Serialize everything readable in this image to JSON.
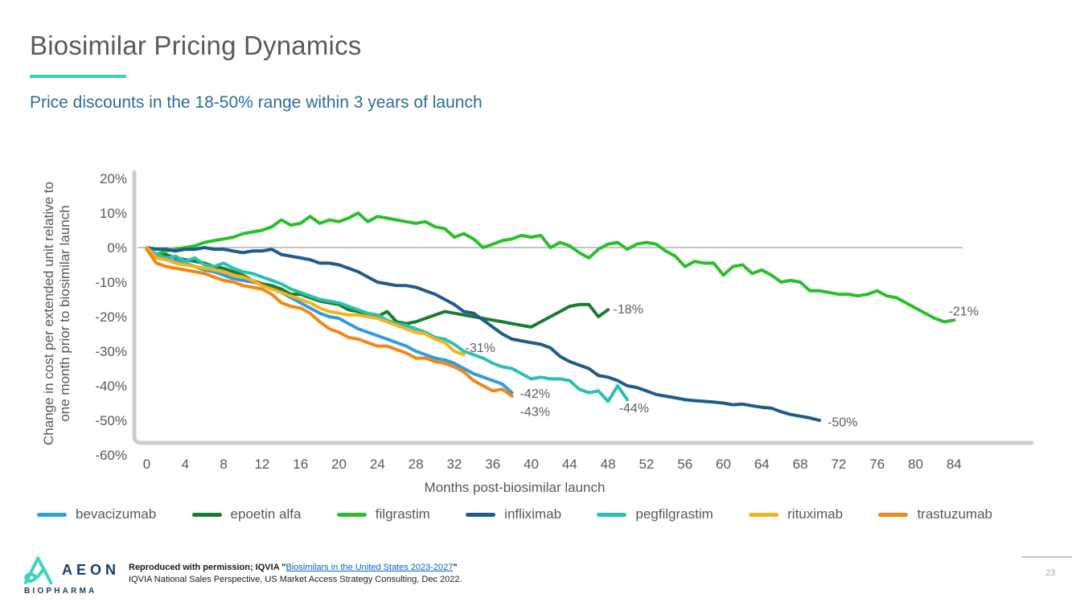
{
  "header": {
    "title": "Biosimilar Pricing Dynamics",
    "subtitle": "Price discounts in the 18-50% range within 3 years of launch",
    "accent_color": "#3ed3c0",
    "title_color": "#58595b",
    "subtitle_color": "#2e6d95"
  },
  "chart_data": {
    "type": "line",
    "x_label": "Months post-biosimilar launch",
    "y_label_line1": "Change in cost per extended unit relative to",
    "y_label_line2": "one month prior to biosimilar launch",
    "xlim": [
      0,
      84
    ],
    "ylim": [
      -60,
      20
    ],
    "x_ticks": [
      0,
      4,
      8,
      12,
      16,
      20,
      24,
      28,
      32,
      36,
      40,
      44,
      48,
      52,
      56,
      60,
      64,
      68,
      72,
      76,
      80,
      84
    ],
    "y_ticks": [
      {
        "v": 20,
        "label": "20%"
      },
      {
        "v": 10,
        "label": "10%"
      },
      {
        "v": 0,
        "label": "0%"
      },
      {
        "v": -10,
        "label": "-10%"
      },
      {
        "v": -20,
        "label": "-20%"
      },
      {
        "v": -30,
        "label": "-30%"
      },
      {
        "v": -40,
        "label": "-40%"
      },
      {
        "v": -50,
        "label": "-50%"
      },
      {
        "v": -60,
        "label": "-60%"
      }
    ],
    "grid": "zero-line-only",
    "legend_position": "bottom",
    "series": [
      {
        "name": "bevacizumab",
        "color": "#2e9fd9",
        "end_label": "-42%",
        "start_month": 0,
        "values": [
          0,
          -2,
          -3.5,
          -4,
          -4.5,
          -5.5,
          -6.5,
          -7,
          -8,
          -9,
          -9.5,
          -10,
          -10.5,
          -11.5,
          -13,
          -14.5,
          -16,
          -17.5,
          -19,
          -20,
          -20.5,
          -22,
          -23.5,
          -24.5,
          -25.5,
          -26.5,
          -27.5,
          -28.5,
          -30,
          -31,
          -32,
          -32.5,
          -33.5,
          -35,
          -36.5,
          -37.5,
          -38.5,
          -39.5,
          -42
        ]
      },
      {
        "name": "epoetin alfa",
        "color": "#1b7b33",
        "end_label": "-18%",
        "start_month": 0,
        "values": [
          0,
          -2.5,
          -2,
          -3,
          -3.5,
          -4,
          -4.5,
          -5.5,
          -6,
          -7,
          -8,
          -9.5,
          -10.5,
          -11,
          -12,
          -13.5,
          -13.5,
          -14.5,
          -15.5,
          -16,
          -16.5,
          -18,
          -18.5,
          -19.5,
          -20,
          -18.5,
          -21.5,
          -22,
          -21.5,
          -20.5,
          -19.5,
          -18.5,
          -19,
          -19.5,
          -20,
          -20.5,
          -21,
          -21.5,
          -22,
          -22.5,
          -23,
          -21.5,
          -20,
          -18.5,
          -17,
          -16.5,
          -16.5,
          -20,
          -18
        ]
      },
      {
        "name": "filgrastim",
        "color": "#2cbe2c",
        "end_label": "-21%",
        "start_month": 0,
        "values": [
          -0.5,
          -2,
          -1,
          -0.5,
          0,
          0.5,
          1.5,
          2,
          2.5,
          3,
          4,
          4.5,
          5,
          6,
          8,
          6.5,
          7,
          9,
          7,
          8,
          7.5,
          8.5,
          10,
          7.5,
          9,
          8.5,
          8,
          7.5,
          7,
          7.5,
          6,
          5.5,
          3,
          4,
          2.5,
          0,
          1,
          2,
          2.5,
          3.5,
          3,
          3.5,
          0,
          1.5,
          0.5,
          -1.5,
          -3,
          -0.5,
          1,
          1.5,
          -0.5,
          1,
          1.5,
          1,
          -1,
          -2.5,
          -5.5,
          -4,
          -4.5,
          -4.5,
          -8,
          -5.5,
          -5,
          -7.5,
          -6.5,
          -8,
          -10,
          -9.5,
          -10,
          -12.5,
          -12.5,
          -13,
          -13.5,
          -13.5,
          -14,
          -13.5,
          -12.5,
          -14,
          -14.5,
          -16,
          -17.5,
          -19,
          -20.5,
          -21.5,
          -21
        ]
      },
      {
        "name": "infliximab",
        "color": "#1f5c8a",
        "end_label": "-50%",
        "start_month": 0,
        "values": [
          0,
          -0.5,
          -0.5,
          -1,
          -0.5,
          -0.5,
          0,
          -0.5,
          -0.5,
          -1,
          -1.5,
          -1,
          -1,
          -0.5,
          -2,
          -2.5,
          -3,
          -3.5,
          -4.5,
          -4.5,
          -5,
          -6,
          -7,
          -8.5,
          -10,
          -10.5,
          -11,
          -11,
          -11.5,
          -12.5,
          -13.5,
          -15,
          -16.5,
          -18.5,
          -19,
          -21,
          -23,
          -25,
          -26.5,
          -27,
          -27.5,
          -28,
          -29,
          -31.5,
          -33,
          -34,
          -35,
          -37,
          -37.5,
          -38.5,
          -40,
          -40.5,
          -41.5,
          -42.5,
          -43,
          -43.5,
          -44,
          -44.3,
          -44.5,
          -44.7,
          -45,
          -45.5,
          -45.3,
          -45.8,
          -46.2,
          -46.5,
          -47.5,
          -48.3,
          -48.8,
          -49.3,
          -50
        ]
      },
      {
        "name": "pegfilgrastim",
        "color": "#2bc0b2",
        "end_label": "-44%",
        "start_month": 0,
        "values": [
          0,
          -2,
          -3,
          -2.5,
          -4,
          -3,
          -5,
          -5.5,
          -4.5,
          -6,
          -7,
          -7.5,
          -8.5,
          -9.5,
          -10.5,
          -12,
          -13,
          -14,
          -15,
          -15.5,
          -16,
          -17,
          -18,
          -19,
          -19.5,
          -21,
          -22,
          -22.5,
          -23.5,
          -24.5,
          -26,
          -26.5,
          -28,
          -30,
          -31,
          -32,
          -33.5,
          -34.5,
          -35,
          -36.5,
          -38,
          -37.5,
          -38,
          -38,
          -38.5,
          -41,
          -42,
          -41.5,
          -44.5,
          -40,
          -44
        ]
      },
      {
        "name": "rituximab",
        "color": "#f5b31b",
        "end_label": "-31%",
        "start_month": 0,
        "values": [
          0,
          -3,
          -3.5,
          -4.5,
          -5,
          -5.5,
          -6,
          -6.5,
          -7,
          -8,
          -8.5,
          -9.5,
          -11,
          -12,
          -13,
          -14,
          -15,
          -16,
          -17.5,
          -18.5,
          -19,
          -19.5,
          -19.5,
          -20,
          -20.5,
          -21.5,
          -22.5,
          -23.5,
          -24.5,
          -25,
          -26.5,
          -27.5,
          -30,
          -31
        ]
      },
      {
        "name": "trastuzumab",
        "color": "#f08718",
        "end_label": "-43%",
        "start_month": 0,
        "values": [
          -0.5,
          -4.5,
          -5.5,
          -6,
          -6.5,
          -7,
          -7.5,
          -8.5,
          -9.5,
          -10,
          -11,
          -11.5,
          -12,
          -13.5,
          -16,
          -17,
          -17.5,
          -19,
          -21.5,
          -23.5,
          -24.5,
          -26,
          -26.5,
          -27.5,
          -28.5,
          -28.5,
          -29.5,
          -30.5,
          -32,
          -32,
          -33,
          -33.5,
          -34.5,
          -36,
          -38.5,
          -40,
          -41.5,
          -41,
          -43
        ]
      }
    ],
    "annotations": [
      {
        "label": "-18%",
        "month": 50.1,
        "value": -17.7
      },
      {
        "label": "-21%",
        "month": 85.0,
        "value": -18.3
      },
      {
        "label": "-31%",
        "month": 34.7,
        "value": -28.8
      },
      {
        "label": "-42%",
        "month": 40.4,
        "value": -42.1
      },
      {
        "label": "-43%",
        "month": 40.4,
        "value": -47.3
      },
      {
        "label": "-44%",
        "month": 50.7,
        "value": -46.3
      },
      {
        "label": "-50%",
        "month": 72.4,
        "value": -50.4
      }
    ]
  },
  "footer": {
    "logo": {
      "name_top": "AEON",
      "name_bottom": "BIOPHARMA",
      "mark_color": "#3ed3c0",
      "text_color": "#1c3e64"
    },
    "source_prefix": "Reproduced with permission; IQVIA \"",
    "source_link": "Biosimilars in the United States 2023-2027",
    "source_suffix": "\"",
    "source_line2": "IQVIA National Sales Perspective, US Market Access Strategy Consulting, Dec 2022.",
    "page_number": "23"
  }
}
